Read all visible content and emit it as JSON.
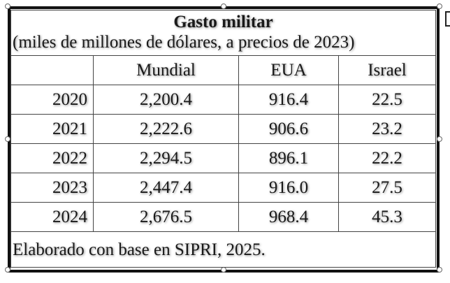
{
  "table": {
    "title": "Gasto militar",
    "subtitle": "(miles de millones de dólares, a precios de 2023)",
    "columns": [
      "",
      "Mundial",
      "EUA",
      "Israel"
    ],
    "rows": [
      {
        "year": "2020",
        "mundial": "2,200.4",
        "eua": "916.4",
        "israel": "22.5"
      },
      {
        "year": "2021",
        "mundial": "2,222.6",
        "eua": "906.6",
        "israel": "23.2"
      },
      {
        "year": "2022",
        "mundial": "2,294.5",
        "eua": "896.1",
        "israel": "22.2"
      },
      {
        "year": "2023",
        "mundial": "2,447.4",
        "eua": "916.0",
        "israel": "27.5"
      },
      {
        "year": "2024",
        "mundial": "2,676.5",
        "eua": "968.4",
        "israel": "45.3"
      }
    ],
    "footer": "Elaborado con base en SIPRI, 2025."
  }
}
